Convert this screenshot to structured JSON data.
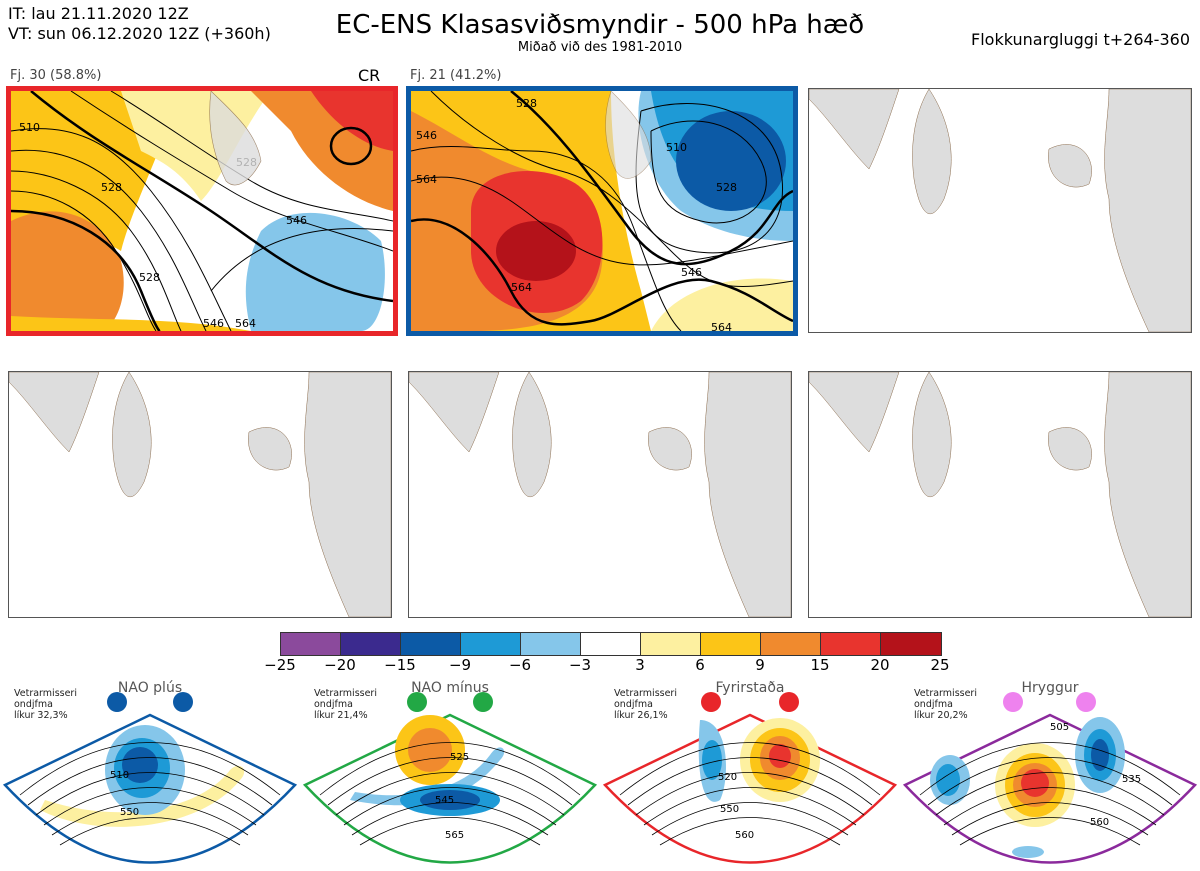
{
  "header": {
    "it_line": "IT: lau 21.11.2020 12Z",
    "vt_line": "VT: sun 06.12.2020 12Z  (+360h)",
    "title": "EC-ENS Klasasviðsmyndir - 500 hPa hæð",
    "subtitle": "Miðað við des 1981-2010",
    "window": "Flokkunargluggi t+264-360"
  },
  "panels": [
    {
      "title": "Fj. 30 (58.8%)",
      "tag": "CR",
      "border_color": "#e8262a",
      "contour_labels": [
        "510",
        "528",
        "528",
        "528",
        "546",
        "546",
        "564"
      ]
    },
    {
      "title": "Fj. 21 (41.2%)",
      "tag": "",
      "border_color": "#0c5aa6",
      "contour_labels": [
        "528",
        "546",
        "564",
        "510",
        "528",
        "546",
        "564",
        "564"
      ]
    }
  ],
  "colorbar": {
    "labels": [
      "−25",
      "−20",
      "−15",
      "−9",
      "−6",
      "−3",
      "3",
      "6",
      "9",
      "15",
      "20",
      "25"
    ],
    "colors": [
      "#8b4a9c",
      "#3b2a8e",
      "#0c5aa6",
      "#1e9ad6",
      "#85c6ea",
      "#ffffff",
      "#fdf0a0",
      "#fcc517",
      "#f08a2e",
      "#e8342e",
      "#b4121a"
    ]
  },
  "regimes": [
    {
      "name": "NAO plús",
      "note": [
        "Vetrarmisseri",
        "ondjfma",
        "líkur 32,3%"
      ],
      "color": "#0c5aa6",
      "labels": [
        "510",
        "550"
      ]
    },
    {
      "name": "NAO mínus",
      "note": [
        "Vetrarmisseri",
        "ondjfma",
        "líkur 21,4%"
      ],
      "color": "#22a845",
      "labels": [
        "525",
        "545",
        "565"
      ]
    },
    {
      "name": "Fyrirstaða",
      "note": [
        "Vetrarmisseri",
        "ondjfma",
        "líkur 26,1%"
      ],
      "color": "#e8262a",
      "labels": [
        "520",
        "550",
        "560"
      ]
    },
    {
      "name": "Hryggur",
      "note": [
        "Vetrarmisseri",
        "ondjfma",
        "líkur 20,2%"
      ],
      "color": "#8b2a9c",
      "labels": [
        "505",
        "535",
        "560"
      ]
    }
  ]
}
